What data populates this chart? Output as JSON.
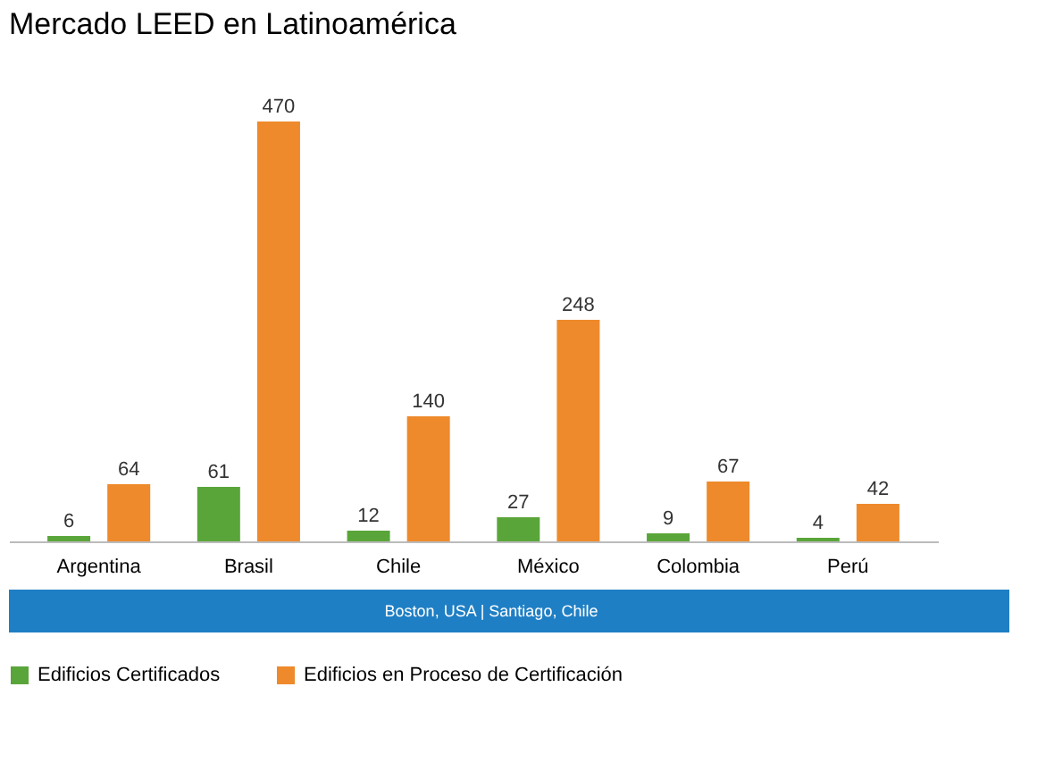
{
  "chart_data": {
    "type": "bar",
    "title": "Mercado LEED en Latinoamérica",
    "categories": [
      "Argentina",
      "Brasil",
      "Chile",
      "México",
      "Colombia",
      "Perú"
    ],
    "series": [
      {
        "name": "Edificios Certificados",
        "color": "#5aa53a",
        "values": [
          6,
          61,
          12,
          27,
          9,
          4
        ]
      },
      {
        "name": "Edificios en Proceso de Certificación",
        "color": "#ee8a2c",
        "values": [
          64,
          470,
          140,
          248,
          67,
          42
        ]
      }
    ],
    "data_labels": true,
    "legend": "bottom",
    "grid": false,
    "annotations": [
      "Boston, USA  |  Santiago, Chile"
    ]
  }
}
